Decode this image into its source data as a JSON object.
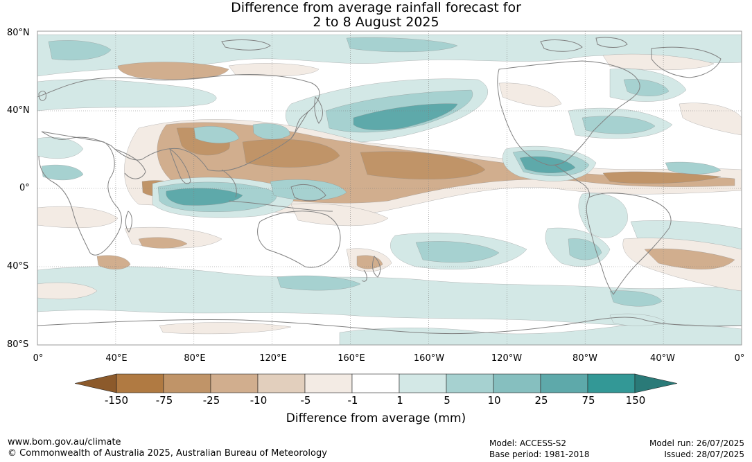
{
  "title": {
    "line1": "Difference from average rainfall forecast for",
    "line2": "2 to 8 August 2025"
  },
  "axes": {
    "lat_labels": [
      "80°N",
      "40°N",
      "0°",
      "40°S",
      "80°S"
    ],
    "lon_labels": [
      "0°",
      "40°E",
      "80°E",
      "120°E",
      "160°E",
      "160°W",
      "120°W",
      "80°W",
      "40°W",
      "0°"
    ]
  },
  "colorbar": {
    "title": "Difference from average (mm)",
    "labels": [
      "-150",
      "-75",
      "-25",
      "-10",
      "-5",
      "-1",
      "1",
      "5",
      "10",
      "25",
      "75",
      "150"
    ],
    "colors": {
      "below_min": "#8c5a2b",
      "dry": [
        "#b07a42",
        "#c09468",
        "#d1ae8e",
        "#e2cfbd",
        "#f3ebe4"
      ],
      "neutral": "#ffffff",
      "wet": [
        "#d3e8e6",
        "#a6d1d0",
        "#86bfbf",
        "#5ea9aa",
        "#339896"
      ],
      "above_max": "#2a7a78"
    }
  },
  "footer": {
    "website": "www.bom.gov.au/climate",
    "copyright": "© Commonwealth of Australia 2025, Australian Bureau of Meteorology",
    "model": "Model: ACCESS-S2",
    "base_period": "Base period: 1981-2018",
    "model_run": "Model run: 26/07/2025",
    "issued": "Issued: 28/07/2025"
  }
}
